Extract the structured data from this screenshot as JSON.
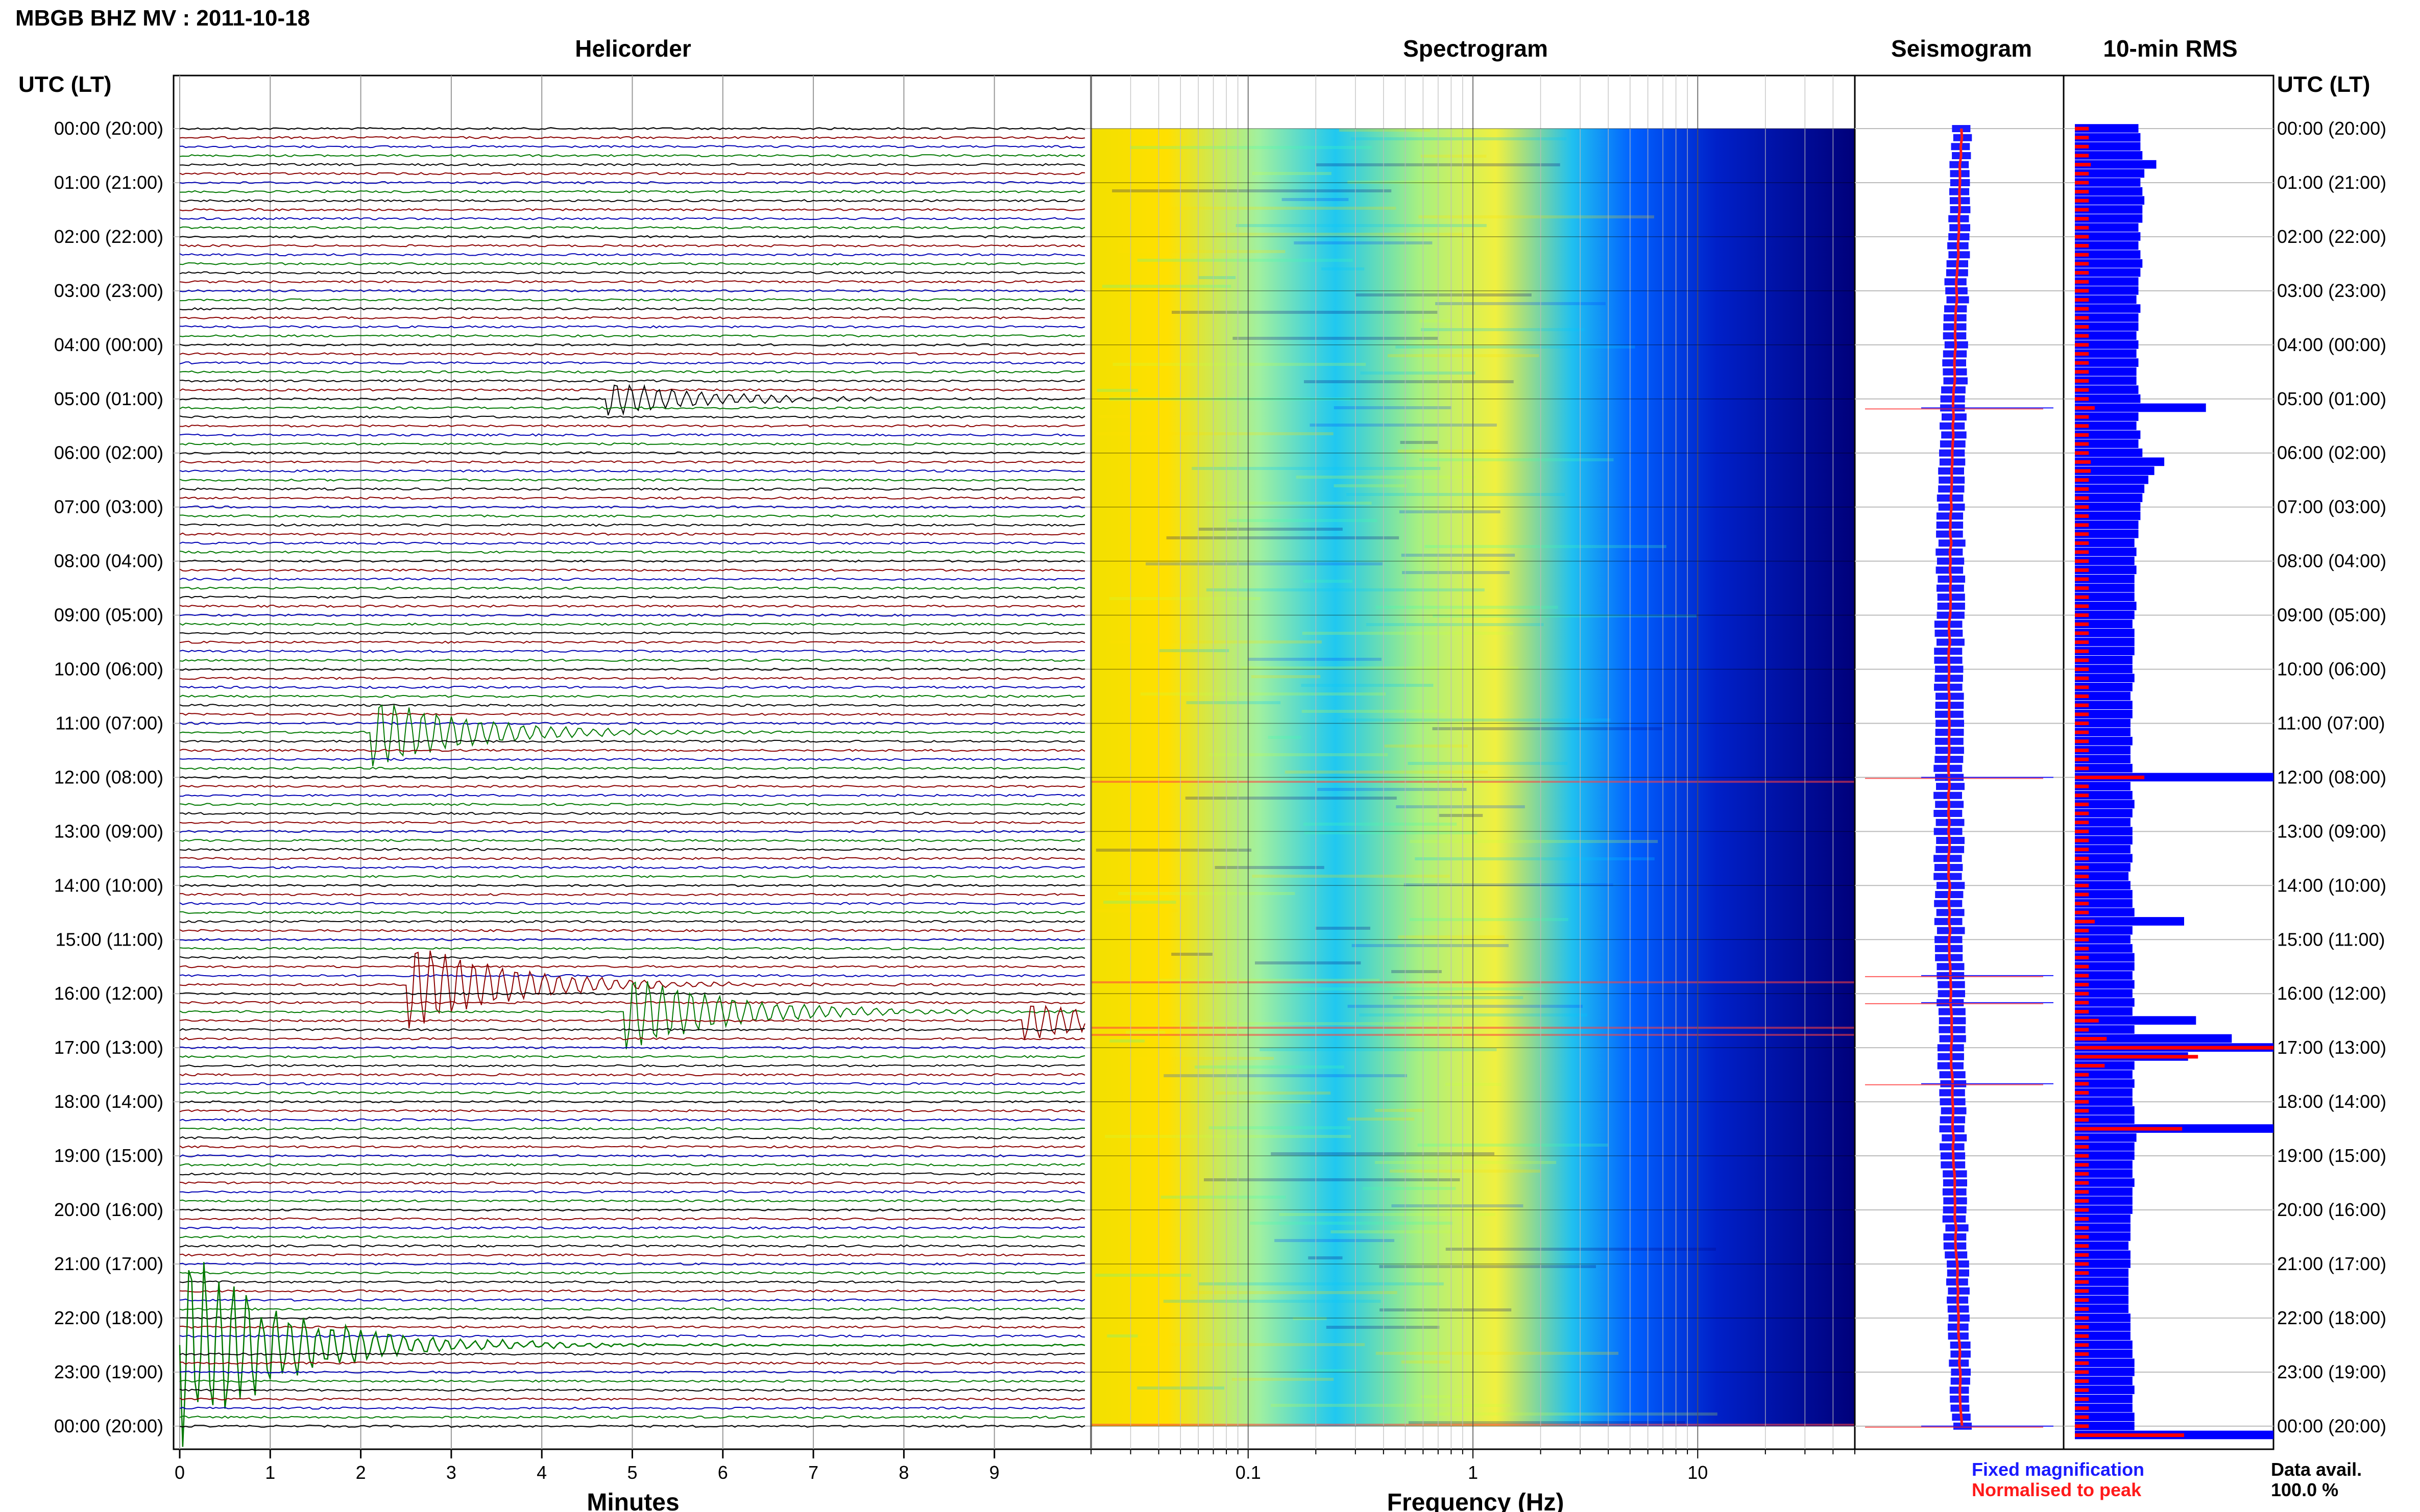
{
  "header": {
    "title": "MBGB BHZ MV : 2011-10-18"
  },
  "panels": {
    "helicorder": "Helicorder",
    "spectrogram": "Spectrogram",
    "seismogram": "Seismogram",
    "rms": "10-min RMS"
  },
  "axes": {
    "left_header": "UTC (LT)",
    "right_header": "UTC (LT)",
    "minutes_label": "Minutes",
    "frequency_label": "Frequency (Hz)"
  },
  "legend": {
    "fixed": "Fixed magnification",
    "normalised": "Normalised to peak",
    "fixed_color": "#1a1aff",
    "normalised_color": "#ff1a1a"
  },
  "availability": {
    "label": "Data avail.",
    "value": "100.0 %"
  },
  "colors": {
    "trace_black": "#000000",
    "trace_red": "#8b0000",
    "trace_green": "#007800",
    "trace_blue": "#0000b4",
    "rms_blue": "#0000ff",
    "rms_red": "#ff0000",
    "spec_low": "#00007a",
    "spec_high": "#ffe000"
  },
  "chart_data": [
    {
      "type": "line",
      "name": "helicorder",
      "title": "Helicorder",
      "xlabel": "Minutes",
      "x_ticks": [
        0,
        1,
        2,
        3,
        4,
        5,
        6,
        7,
        8,
        9
      ],
      "xlim": [
        0,
        10
      ],
      "row_labels": [
        "00:00 (20:00)",
        "01:00 (21:00)",
        "02:00 (22:00)",
        "03:00 (23:00)",
        "04:00 (00:00)",
        "05:00 (01:00)",
        "06:00 (02:00)",
        "07:00 (03:00)",
        "08:00 (04:00)",
        "09:00 (05:00)",
        "10:00 (06:00)",
        "11:00 (07:00)",
        "12:00 (08:00)",
        "13:00 (09:00)",
        "14:00 (10:00)",
        "15:00 (11:00)",
        "16:00 (12:00)",
        "17:00 (13:00)",
        "18:00 (14:00)",
        "19:00 (15:00)",
        "20:00 (16:00)",
        "21:00 (17:00)",
        "22:00 (18:00)",
        "23:00 (19:00)",
        "00:00 (20:00)"
      ],
      "row_interval_min": 10,
      "trace_colors": [
        "#000000",
        "#8b0000",
        "#0000b4",
        "#007800"
      ],
      "events": [
        {
          "row": 30,
          "minute": 4.7,
          "amplitude": 1.2,
          "color": "#000000"
        },
        {
          "row": 67,
          "minute": 2.1,
          "amplitude": 2.4,
          "color": "#007800"
        },
        {
          "row": 95,
          "minute": 2.5,
          "amplitude": 3.0,
          "color": "#8b0000"
        },
        {
          "row": 98,
          "minute": 4.9,
          "amplitude": 2.6,
          "color": "#007800"
        },
        {
          "row": 99,
          "minute": 9.3,
          "amplitude": 1.3,
          "color": "#8b0000"
        },
        {
          "row": 135,
          "minute": 0.0,
          "amplitude": 6.5,
          "color": "#007800"
        }
      ]
    },
    {
      "type": "heatmap",
      "name": "spectrogram",
      "title": "Spectrogram",
      "xlabel": "Frequency (Hz)",
      "x_scale": "log",
      "xlim": [
        0.02,
        50
      ],
      "x_ticks": [
        0.1,
        1,
        10
      ],
      "colormap": [
        "#00007a",
        "#0040ff",
        "#00c8ff",
        "#40ffb0",
        "#c8ff40",
        "#ffe000"
      ]
    },
    {
      "type": "line",
      "name": "seismogram",
      "title": "Seismogram",
      "series": [
        {
          "name": "Fixed magnification",
          "color": "#1a1aff"
        },
        {
          "name": "Normalised to peak",
          "color": "#ff1a1a"
        }
      ],
      "spikes_at_row": [
        31,
        72,
        94,
        97,
        106,
        144
      ]
    },
    {
      "type": "bar",
      "name": "rms",
      "title": "10-min RMS",
      "orientation": "horizontal",
      "rows": 145,
      "blue_values": [
        0.32,
        0.33,
        0.33,
        0.34,
        0.41,
        0.35,
        0.33,
        0.34,
        0.35,
        0.34,
        0.34,
        0.32,
        0.33,
        0.32,
        0.33,
        0.34,
        0.33,
        0.32,
        0.32,
        0.31,
        0.33,
        0.32,
        0.32,
        0.31,
        0.32,
        0.31,
        0.32,
        0.31,
        0.31,
        0.32,
        0.33,
        0.66,
        0.32,
        0.31,
        0.33,
        0.32,
        0.34,
        0.45,
        0.4,
        0.37,
        0.35,
        0.34,
        0.33,
        0.33,
        0.32,
        0.32,
        0.3,
        0.31,
        0.3,
        0.31,
        0.3,
        0.3,
        0.3,
        0.31,
        0.3,
        0.29,
        0.3,
        0.3,
        0.3,
        0.29,
        0.29,
        0.3,
        0.29,
        0.28,
        0.29,
        0.29,
        0.28,
        0.28,
        0.29,
        0.28,
        0.28,
        0.29,
        1.0,
        0.28,
        0.29,
        0.3,
        0.29,
        0.28,
        0.29,
        0.29,
        0.28,
        0.29,
        0.28,
        0.27,
        0.28,
        0.29,
        0.29,
        0.3,
        0.55,
        0.29,
        0.28,
        0.29,
        0.3,
        0.3,
        0.29,
        0.3,
        0.29,
        0.3,
        0.29,
        0.61,
        0.3,
        0.79,
        1.0,
        0.57,
        0.3,
        0.29,
        0.3,
        0.29,
        0.29,
        0.3,
        0.3,
        1.0,
        0.31,
        0.3,
        0.3,
        0.29,
        0.29,
        0.3,
        0.29,
        0.29,
        0.29,
        0.28,
        0.28,
        0.28,
        0.27,
        0.28,
        0.28,
        0.27,
        0.27,
        0.27,
        0.27,
        0.27,
        0.28,
        0.28,
        0.28,
        0.29,
        0.29,
        0.3,
        0.3,
        0.29,
        0.3,
        0.29,
        0.29,
        0.3,
        0.3,
        1.0
      ],
      "red_values": [
        0.07,
        0.07,
        0.07,
        0.07,
        0.08,
        0.07,
        0.07,
        0.07,
        0.07,
        0.07,
        0.07,
        0.07,
        0.07,
        0.07,
        0.07,
        0.07,
        0.07,
        0.07,
        0.07,
        0.07,
        0.07,
        0.07,
        0.07,
        0.07,
        0.07,
        0.07,
        0.07,
        0.07,
        0.07,
        0.07,
        0.07,
        0.1,
        0.07,
        0.07,
        0.07,
        0.07,
        0.07,
        0.08,
        0.08,
        0.07,
        0.07,
        0.07,
        0.07,
        0.07,
        0.07,
        0.07,
        0.07,
        0.07,
        0.07,
        0.07,
        0.07,
        0.07,
        0.07,
        0.07,
        0.07,
        0.07,
        0.07,
        0.07,
        0.07,
        0.07,
        0.07,
        0.07,
        0.07,
        0.07,
        0.07,
        0.07,
        0.07,
        0.07,
        0.07,
        0.07,
        0.07,
        0.07,
        0.35,
        0.07,
        0.07,
        0.07,
        0.07,
        0.07,
        0.07,
        0.07,
        0.07,
        0.07,
        0.07,
        0.07,
        0.07,
        0.07,
        0.07,
        0.07,
        0.1,
        0.07,
        0.07,
        0.07,
        0.07,
        0.07,
        0.07,
        0.07,
        0.07,
        0.07,
        0.07,
        0.12,
        0.07,
        0.16,
        1.0,
        0.62,
        0.15,
        0.07,
        0.07,
        0.07,
        0.07,
        0.07,
        0.07,
        0.54,
        0.07,
        0.07,
        0.07,
        0.07,
        0.07,
        0.07,
        0.07,
        0.07,
        0.07,
        0.07,
        0.07,
        0.07,
        0.07,
        0.07,
        0.07,
        0.07,
        0.07,
        0.07,
        0.07,
        0.07,
        0.07,
        0.07,
        0.07,
        0.07,
        0.07,
        0.07,
        0.07,
        0.07,
        0.07,
        0.07,
        0.07,
        0.07,
        0.07,
        0.55
      ]
    }
  ]
}
